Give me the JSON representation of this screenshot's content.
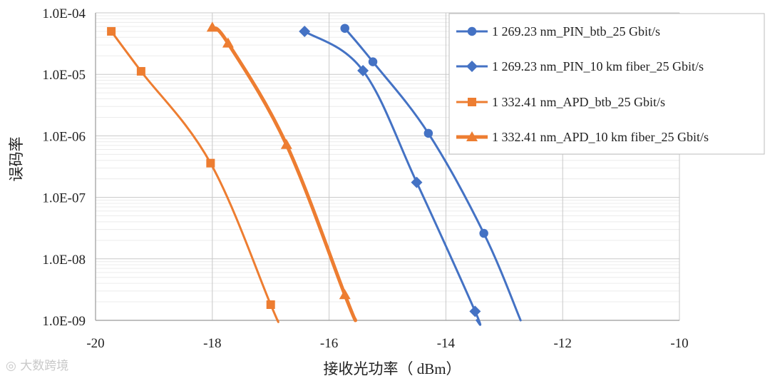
{
  "chart_data": {
    "type": "line",
    "xlabel": "接收光功率（ dBm）",
    "ylabel": "误码率",
    "xlim": [
      -20,
      -10
    ],
    "ylim": [
      1e-09,
      0.0001
    ],
    "yscale": "log",
    "x_ticks": [
      -20,
      -18,
      -16,
      -14,
      -12,
      -10
    ],
    "x_tick_labels": [
      "-20",
      "-18",
      "-16",
      "-14",
      "-12",
      "-10"
    ],
    "y_ticks": [
      0.0001,
      1e-05,
      1e-06,
      1e-07,
      1e-08,
      1e-09
    ],
    "y_tick_labels": [
      "1.0E-04",
      "1.0E-05",
      "1.0E-06",
      "1.0E-07",
      "1.0E-08",
      "1.0E-09"
    ],
    "grid": true,
    "legend_position": "top-right",
    "series": [
      {
        "name": "1 269.23 nm_PIN_btb_25 Gbit/s",
        "color": "#4472C4",
        "marker": "circle",
        "points": [
          [
            -15.73,
            5.6e-05
          ],
          [
            -15.25,
            1.6e-05
          ],
          [
            -14.3,
            1.1e-06
          ],
          [
            -13.35,
            2.6e-08
          ]
        ],
        "curve_end": [
          -12.72,
          1e-09
        ]
      },
      {
        "name": "1 269.23 nm_PIN_10 km fiber_25 Gbit/s",
        "color": "#4472C4",
        "marker": "diamond",
        "points": [
          [
            -16.42,
            5e-05
          ],
          [
            -15.42,
            1.15e-05
          ],
          [
            -14.5,
            1.75e-07
          ],
          [
            -13.5,
            1.4e-09
          ]
        ],
        "curve_end": [
          -13.47,
          1e-09
        ]
      },
      {
        "name": "1 332.41 nm_APD_btb_25 Gbit/s",
        "color": "#ED7D31",
        "marker": "square",
        "points": [
          [
            -19.73,
            5e-05
          ],
          [
            -19.22,
            1.12e-05
          ],
          [
            -18.03,
            3.6e-07
          ],
          [
            -17.0,
            1.8e-09
          ]
        ],
        "curve_end": [
          -16.88,
          1e-09
        ]
      },
      {
        "name": "1 332.41 nm_APD_10 km fiber_25 Gbit/s",
        "color": "#ED7D31",
        "marker": "triangle",
        "points": [
          [
            -18.0,
            5.8e-05
          ],
          [
            -17.73,
            3.2e-05
          ],
          [
            -16.73,
            7.2e-07
          ],
          [
            -15.73,
            2.6e-09
          ]
        ],
        "curve_end": [
          -15.55,
          1e-09
        ]
      }
    ]
  },
  "watermark": "大数跨境"
}
